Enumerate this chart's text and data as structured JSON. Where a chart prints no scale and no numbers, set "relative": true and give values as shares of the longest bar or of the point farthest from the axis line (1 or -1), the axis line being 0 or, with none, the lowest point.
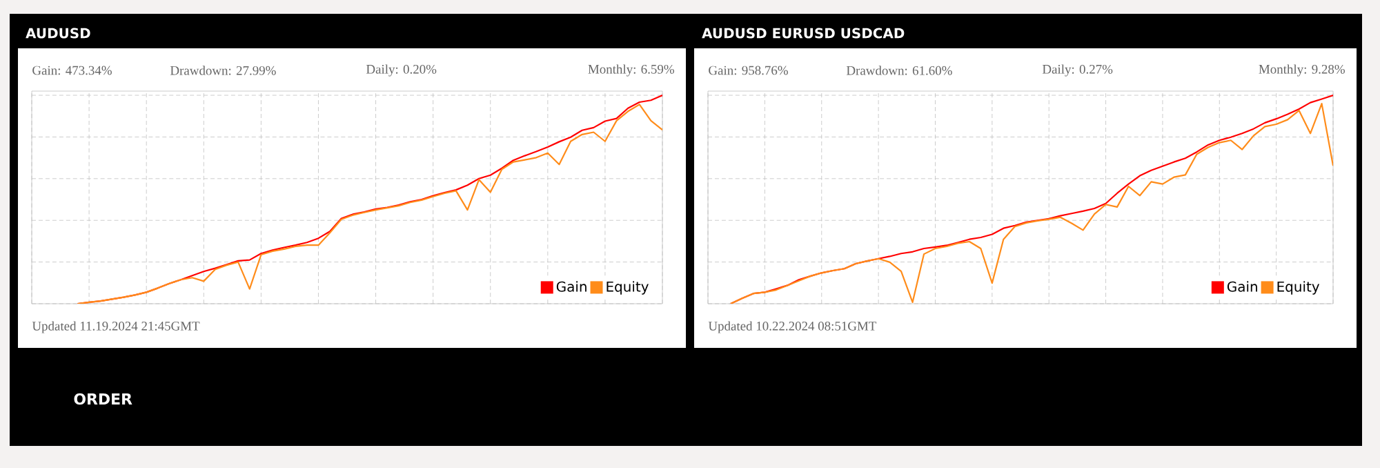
{
  "chart_data": [
    {
      "type": "line",
      "title": "AUDUSD",
      "relative": true,
      "grid": true,
      "legend": "bottom right",
      "categories": [
        null,
        null,
        null,
        null,
        null,
        null,
        null,
        null,
        null,
        null,
        null,
        null,
        null,
        null,
        null,
        null,
        null,
        null,
        null,
        null,
        null,
        null,
        null,
        null,
        null,
        null,
        null,
        null,
        null,
        null,
        null,
        null,
        null,
        null,
        null,
        null,
        null,
        null,
        null,
        null,
        null,
        null,
        null,
        null,
        null,
        null,
        null,
        null,
        null,
        null,
        null,
        null,
        null,
        null,
        null,
        null
      ],
      "series": [
        {
          "name": "Gain",
          "color": "#ff0000",
          "values": [
            null,
            null,
            null,
            null,
            0,
            0.007,
            0.013,
            0.022,
            0.031,
            0.042,
            0.055,
            0.075,
            0.097,
            0.115,
            0.135,
            0.155,
            0.17,
            0.188,
            0.206,
            0.21,
            0.241,
            0.257,
            0.27,
            0.281,
            0.294,
            0.314,
            0.347,
            0.409,
            0.429,
            0.44,
            0.454,
            0.462,
            0.473,
            0.489,
            0.5,
            0.518,
            0.533,
            0.546,
            0.569,
            0.6,
            0.617,
            0.65,
            0.688,
            0.71,
            0.73,
            0.752,
            0.777,
            0.799,
            0.832,
            0.845,
            0.876,
            0.889,
            0.938,
            0.967,
            0.976,
            1
          ]
        },
        {
          "name": "Equity",
          "color": "#ff8c1a",
          "values": [
            null,
            null,
            null,
            null,
            0,
            0.007,
            0.013,
            0.022,
            0.031,
            0.042,
            0.055,
            0.075,
            0.097,
            0.115,
            0.125,
            0.108,
            0.165,
            0.185,
            0.2,
            0.071,
            0.235,
            0.252,
            0.262,
            0.275,
            0.281,
            0.281,
            0.34,
            0.405,
            0.425,
            0.438,
            0.45,
            0.46,
            0.47,
            0.486,
            0.497,
            0.514,
            0.53,
            0.542,
            0.45,
            0.595,
            0.535,
            0.645,
            0.68,
            0.69,
            0.701,
            0.723,
            0.668,
            0.779,
            0.812,
            0.823,
            0.779,
            0.878,
            0.923,
            0.956,
            0.878,
            0.834
          ]
        }
      ],
      "annotations": [
        "Gain: 473.34%",
        "Drawdown: 27.99%",
        "Daily: 0.20%",
        "Monthly: 6.59%",
        "Updated 11.19.2024 21:45GMT",
        "ORDER"
      ]
    },
    {
      "type": "line",
      "title": "AUDUSD EURUSD USDCAD",
      "relative": true,
      "grid": true,
      "legend": "bottom right",
      "categories": [
        null,
        null,
        null,
        null,
        null,
        null,
        null,
        null,
        null,
        null,
        null,
        null,
        null,
        null,
        null,
        null,
        null,
        null,
        null,
        null,
        null,
        null,
        null,
        null,
        null,
        null,
        null,
        null,
        null,
        null,
        null,
        null,
        null,
        null,
        null,
        null,
        null,
        null,
        null,
        null,
        null,
        null,
        null,
        null,
        null,
        null,
        null,
        null,
        null,
        null,
        null,
        null,
        null,
        null,
        null,
        null
      ],
      "series": [
        {
          "name": "Gain",
          "color": "#ff0000",
          "values": [
            null,
            null,
            0,
            0.026,
            0.049,
            0.055,
            0.071,
            0.088,
            0.115,
            0.132,
            0.148,
            0.159,
            0.168,
            0.192,
            0.205,
            0.216,
            0.227,
            0.241,
            0.249,
            0.265,
            0.272,
            0.28,
            0.294,
            0.309,
            0.318,
            0.333,
            0.362,
            0.375,
            0.391,
            0.4,
            0.408,
            0.422,
            0.433,
            0.444,
            0.457,
            0.481,
            0.53,
            0.574,
            0.614,
            0.64,
            0.66,
            0.68,
            0.698,
            0.728,
            0.762,
            0.784,
            0.799,
            0.817,
            0.839,
            0.868,
            0.887,
            0.909,
            0.934,
            0.965,
            0.982,
            1
          ]
        },
        {
          "name": "Equity",
          "color": "#ff8c1a",
          "values": [
            null,
            null,
            0,
            0.026,
            0.049,
            0.055,
            0.066,
            0.088,
            0.11,
            0.132,
            0.148,
            0.159,
            0.168,
            0.192,
            0.205,
            0.216,
            0.199,
            0.155,
            0.007,
            0.238,
            0.265,
            0.275,
            0.29,
            0.298,
            0.265,
            0.099,
            0.309,
            0.37,
            0.388,
            0.398,
            0.405,
            0.415,
            0.386,
            0.353,
            0.43,
            0.476,
            0.464,
            0.563,
            0.519,
            0.585,
            0.574,
            0.607,
            0.618,
            0.717,
            0.75,
            0.773,
            0.784,
            0.74,
            0.806,
            0.85,
            0.861,
            0.883,
            0.927,
            0.817,
            0.96,
            0.662
          ]
        }
      ],
      "annotations": [
        "Gain: 958.76%",
        "Drawdown: 61.60%",
        "Daily: 0.27%",
        "Monthly: 9.28%",
        "Updated 10.22.2024 08:51GMT"
      ]
    }
  ]
}
